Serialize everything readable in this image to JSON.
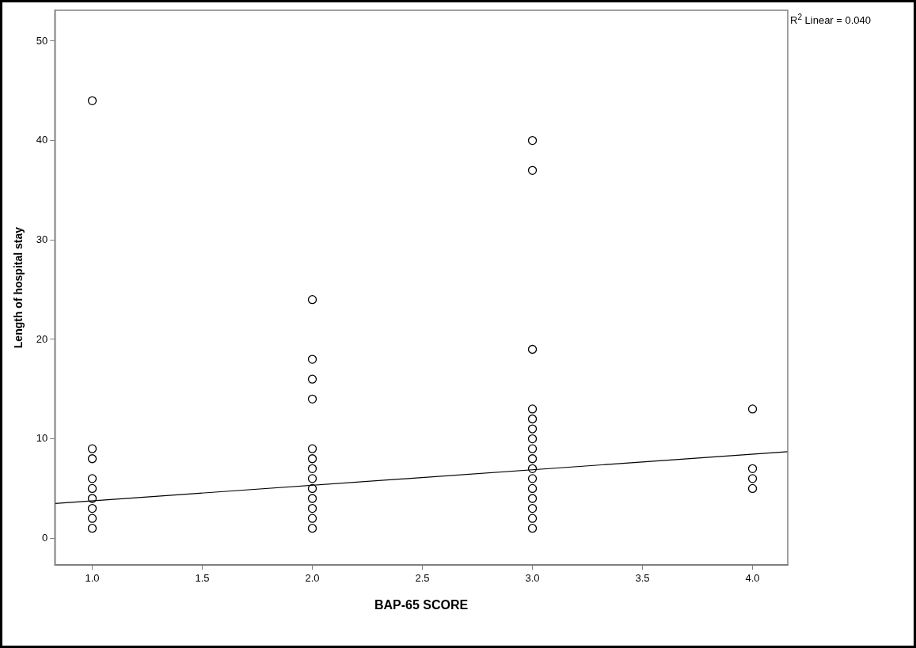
{
  "chart_data": {
    "type": "scatter",
    "xlabel": "BAP-65 SCORE",
    "ylabel": "Length of hospital stay",
    "annotations": [
      "R$^{2}$ Linear = 0.040"
    ],
    "xlim": [
      0.83,
      4.16
    ],
    "xticks": [
      {
        "value": 1,
        "label": "1.0"
      },
      {
        "value": 1.5,
        "label": "1.5"
      },
      {
        "value": 2,
        "label": "2.0"
      },
      {
        "value": 2.5,
        "label": "2.5"
      },
      {
        "value": 3,
        "label": "3.0"
      },
      {
        "value": 3.5,
        "label": "3.5"
      },
      {
        "value": 4,
        "label": "4.0"
      }
    ],
    "ylim": [
      -2.7,
      53.1
    ],
    "yticks": [
      0,
      10,
      20,
      30,
      40,
      50
    ],
    "grid": false,
    "legend": false,
    "series": [
      {
        "marker": "circle",
        "color": "#000000",
        "x": [
          1,
          1,
          1,
          1,
          1,
          1,
          1,
          1,
          1,
          2,
          2,
          2,
          2,
          2,
          2,
          2,
          2,
          2,
          2,
          2,
          2,
          2,
          3,
          3,
          3,
          3,
          3,
          3,
          3,
          3,
          3,
          3,
          3,
          3,
          3,
          3,
          3,
          3,
          4,
          4,
          4,
          4
        ],
        "values": [
          44,
          9,
          8,
          6,
          5,
          4,
          3,
          2,
          1,
          24,
          18,
          16,
          14,
          9,
          8,
          7,
          6,
          5,
          4,
          3,
          2,
          1,
          40,
          37,
          19,
          13,
          12,
          11,
          10,
          9,
          8,
          7,
          6,
          5,
          4,
          3,
          2,
          1,
          13,
          7,
          6,
          5
        ]
      },
      {
        "type": "line",
        "marker": "none",
        "color": "#000000",
        "x": [
          0.83,
          4.16
        ],
        "values": [
          3.5,
          8.7
        ]
      }
    ]
  }
}
